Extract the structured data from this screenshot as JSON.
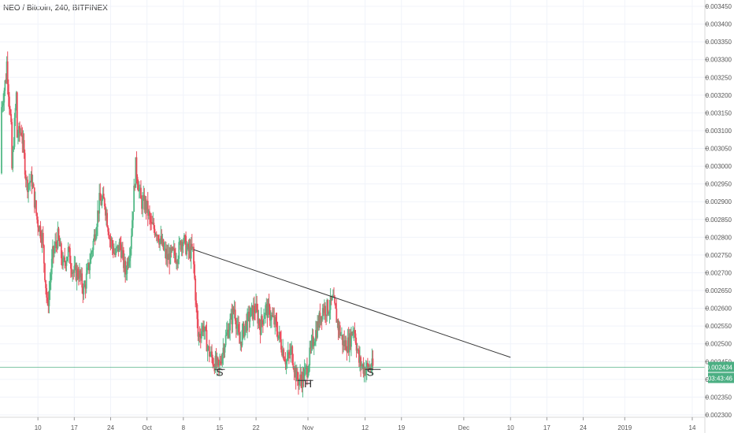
{
  "title": "NEO / Bitcoin, 240, BITFINEX",
  "price_badge": {
    "value": "0.002434",
    "timer": "03:43:46"
  },
  "chart_data": {
    "type": "candlestick",
    "title": "NEO / Bitcoin, 240, BITFINEX",
    "x_axis": {
      "start": "2018-09-03",
      "end": "2019-01-14",
      "ticks": [
        {
          "date": "2018-09-10",
          "label": "10"
        },
        {
          "date": "2018-09-17",
          "label": "17"
        },
        {
          "date": "2018-09-24",
          "label": "24"
        },
        {
          "date": "2018-10-01",
          "label": "Oct"
        },
        {
          "date": "2018-10-08",
          "label": "8"
        },
        {
          "date": "2018-10-15",
          "label": "15"
        },
        {
          "date": "2018-10-22",
          "label": "22"
        },
        {
          "date": "2018-11-01",
          "label": "Nov"
        },
        {
          "date": "2018-11-12",
          "label": "12"
        },
        {
          "date": "2018-11-19",
          "label": "19"
        },
        {
          "date": "2018-12-01",
          "label": "Dec"
        },
        {
          "date": "2018-12-10",
          "label": "10"
        },
        {
          "date": "2018-12-17",
          "label": "17"
        },
        {
          "date": "2018-12-24",
          "label": "24"
        },
        {
          "date": "2019-01-01",
          "label": "2019"
        },
        {
          "date": "2019-01-14",
          "label": "14"
        }
      ]
    },
    "y_axis": {
      "range": [
        0.0023,
        0.00345
      ],
      "ticks": [
        "0.002300",
        "0.002350",
        "0.002400",
        "0.002450",
        "0.002500",
        "0.002550",
        "0.002600",
        "0.002650",
        "0.002700",
        "0.002750",
        "0.002800",
        "0.002850",
        "0.002900",
        "0.002950",
        "0.003000",
        "0.003050",
        "0.003100",
        "0.003150",
        "0.003200",
        "0.003250",
        "0.003300",
        "0.003350",
        "0.003400",
        "0.003450"
      ]
    },
    "grid": true,
    "last_price": 0.002434,
    "price_path": [
      [
        "2018-09-03",
        0.00298
      ],
      [
        "2018-09-03",
        0.00315
      ],
      [
        "2018-09-04",
        0.00325
      ],
      [
        "2018-09-04",
        0.00333
      ],
      [
        "2018-09-05",
        0.0031
      ],
      [
        "2018-09-05",
        0.00295
      ],
      [
        "2018-09-06",
        0.0032
      ],
      [
        "2018-09-06",
        0.00308
      ],
      [
        "2018-09-07",
        0.0031
      ],
      [
        "2018-09-08",
        0.00295
      ],
      [
        "2018-09-09",
        0.00296
      ],
      [
        "2018-09-10",
        0.00285
      ],
      [
        "2018-09-11",
        0.0028
      ],
      [
        "2018-09-12",
        0.0026
      ],
      [
        "2018-09-13",
        0.00275
      ],
      [
        "2018-09-14",
        0.0028
      ],
      [
        "2018-09-15",
        0.00272
      ],
      [
        "2018-09-16",
        0.00276
      ],
      [
        "2018-09-17",
        0.0027
      ],
      [
        "2018-09-18",
        0.0027
      ],
      [
        "2018-09-19",
        0.00265
      ],
      [
        "2018-09-20",
        0.00272
      ],
      [
        "2018-09-21",
        0.0028
      ],
      [
        "2018-09-22",
        0.0029
      ],
      [
        "2018-09-23",
        0.0029
      ],
      [
        "2018-09-24",
        0.0028
      ],
      [
        "2018-09-25",
        0.00275
      ],
      [
        "2018-09-26",
        0.00278
      ],
      [
        "2018-09-27",
        0.0027
      ],
      [
        "2018-09-28",
        0.00278
      ],
      [
        "2018-09-29",
        0.003
      ],
      [
        "2018-09-30",
        0.0029
      ],
      [
        "2018-10-01",
        0.00289
      ],
      [
        "2018-10-02",
        0.00283
      ],
      [
        "2018-10-03",
        0.00282
      ],
      [
        "2018-10-04",
        0.00278
      ],
      [
        "2018-10-05",
        0.00274
      ],
      [
        "2018-10-06",
        0.00275
      ],
      [
        "2018-10-07",
        0.00275
      ],
      [
        "2018-10-08",
        0.0028
      ],
      [
        "2018-10-09",
        0.00276
      ],
      [
        "2018-10-10",
        0.00276
      ],
      [
        "2018-10-11",
        0.00252
      ],
      [
        "2018-10-12",
        0.00255
      ],
      [
        "2018-10-13",
        0.00248
      ],
      [
        "2018-10-14",
        0.00245
      ],
      [
        "2018-10-15",
        0.00243
      ],
      [
        "2018-10-16",
        0.0025
      ],
      [
        "2018-10-17",
        0.00255
      ],
      [
        "2018-10-18",
        0.0026
      ],
      [
        "2018-10-19",
        0.0025
      ],
      [
        "2018-10-20",
        0.00255
      ],
      [
        "2018-10-21",
        0.00258
      ],
      [
        "2018-10-22",
        0.0026
      ],
      [
        "2018-10-23",
        0.00255
      ],
      [
        "2018-10-24",
        0.0026
      ],
      [
        "2018-10-25",
        0.00258
      ],
      [
        "2018-10-26",
        0.00255
      ],
      [
        "2018-10-27",
        0.0025
      ],
      [
        "2018-10-28",
        0.00245
      ],
      [
        "2018-10-29",
        0.00248
      ],
      [
        "2018-10-30",
        0.0024
      ],
      [
        "2018-10-31",
        0.0024
      ],
      [
        "2018-11-01",
        0.00243
      ],
      [
        "2018-11-02",
        0.0025
      ],
      [
        "2018-11-03",
        0.00255
      ],
      [
        "2018-11-04",
        0.0026
      ],
      [
        "2018-11-05",
        0.0026
      ],
      [
        "2018-11-06",
        0.00262
      ],
      [
        "2018-11-07",
        0.00255
      ],
      [
        "2018-11-08",
        0.0025
      ],
      [
        "2018-11-09",
        0.0025
      ],
      [
        "2018-11-10",
        0.00255
      ],
      [
        "2018-11-11",
        0.00245
      ],
      [
        "2018-11-12",
        0.00243
      ],
      [
        "2018-11-13",
        0.002434
      ]
    ],
    "annotations": [
      {
        "type": "trendline",
        "from": [
          "2018-10-10",
          0.002765
        ],
        "to": [
          "2018-12-10",
          0.002462
        ]
      },
      {
        "type": "horizontal_line",
        "value": 0.002434
      },
      {
        "type": "line_segment",
        "from": [
          "2018-10-14",
          0.002428
        ],
        "to": [
          "2018-10-16",
          0.002428
        ]
      },
      {
        "type": "line_segment",
        "from": [
          "2018-10-30",
          0.002397
        ],
        "to": [
          "2018-11-02",
          0.002397
        ]
      },
      {
        "type": "line_segment",
        "from": [
          "2018-11-12",
          0.002428
        ],
        "to": [
          "2018-11-15",
          0.002428
        ]
      },
      {
        "type": "text",
        "text": "S",
        "date": "2018-10-15",
        "price": 0.00241
      },
      {
        "type": "text",
        "text": "H",
        "date": "2018-11-01",
        "price": 0.002378
      },
      {
        "type": "text",
        "text": "S",
        "date": "2018-11-13",
        "price": 0.00241
      }
    ],
    "colors": {
      "up": "#53b987",
      "down": "#eb4d5c",
      "trendline": "#333333",
      "price_line": "#4caf83",
      "badge": "#4caf83",
      "grid": "#f0f3fa"
    }
  }
}
